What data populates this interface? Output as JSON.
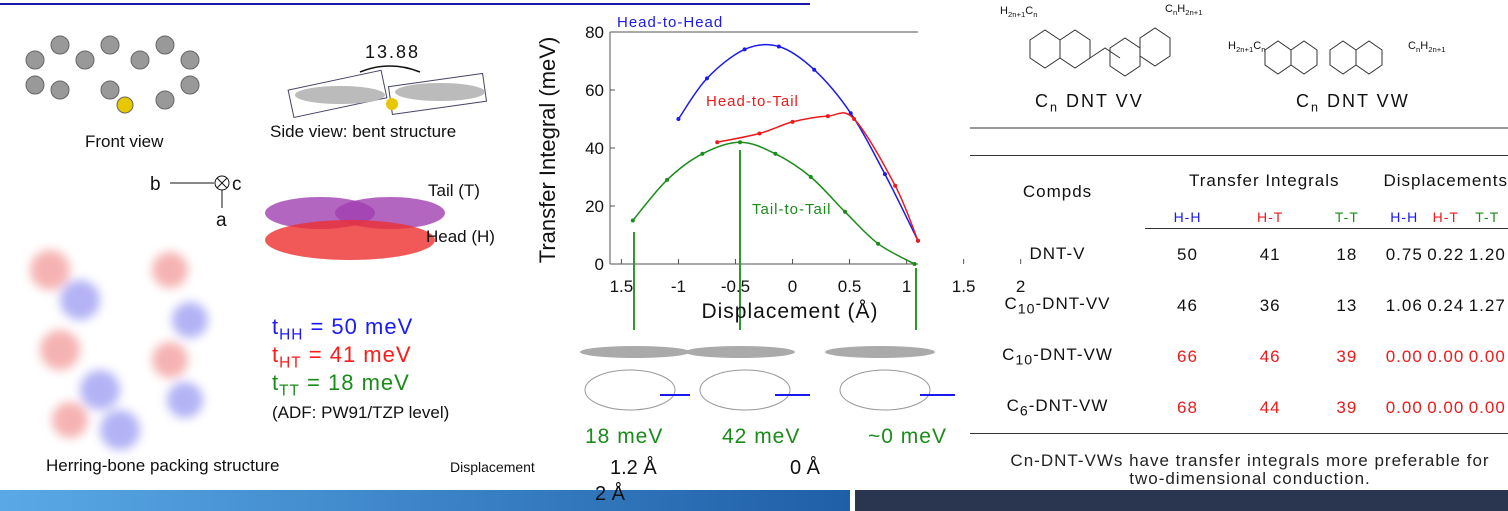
{
  "left": {
    "angle": "13.88",
    "front_view": "Front view",
    "side_view": "Side view: bent structure",
    "axis_b": "b",
    "axis_c": "c",
    "axis_a": "a",
    "tail": "Tail (T)",
    "head": "Head (H)",
    "t_values": [
      {
        "parts": [
          "t",
          "HH",
          " = 50 meV"
        ],
        "color": "#1a1aff"
      },
      {
        "parts": [
          "t",
          "HT",
          " = 41 meV"
        ],
        "color": "#ff1a1a"
      },
      {
        "parts": [
          "t",
          "TT",
          " = 18 meV"
        ],
        "color": "#1a8c1a"
      }
    ],
    "method": "(ADF: PW91/TZP level)",
    "packing": "Herring-bone packing structure"
  },
  "chart_data": {
    "type": "line",
    "y_label": "Transfer Integral (meV)",
    "x_label": "Displacement (Å)",
    "xlim": [
      -1.6,
      1.1
    ],
    "ylim": [
      0,
      80
    ],
    "yticks": [
      0,
      20,
      40,
      60,
      80
    ],
    "xticks": [
      {
        "value": -1.5,
        "label": "1.5"
      },
      -1,
      -0.5,
      0,
      0.5,
      1,
      1.5,
      2
    ],
    "series": [
      {
        "name": "Head-to-Head",
        "color": "#1a1aee",
        "x": [
          -1.0,
          -0.75,
          -0.42,
          -0.12,
          0.19,
          0.51,
          0.81,
          1.1
        ],
        "values": [
          50,
          64,
          74,
          75,
          67,
          52,
          31,
          8
        ]
      },
      {
        "name": "Head-to-Tail",
        "color": "#ee1a1a",
        "x": [
          -0.66,
          -0.29,
          0,
          0.31,
          0.54,
          0.9,
          1.1
        ],
        "values": [
          42,
          45,
          49,
          51,
          50,
          27,
          8
        ]
      },
      {
        "name": "Tail-to-Tail",
        "color": "#1a8c1a",
        "x": [
          -1.4,
          -1.1,
          -0.79,
          -0.46,
          -0.15,
          0.16,
          0.46,
          0.75,
          1.07
        ],
        "values": [
          15,
          29,
          38,
          42,
          38,
          30,
          18,
          7,
          0
        ]
      }
    ]
  },
  "bottom": {
    "e1": "18 meV",
    "e2": "42 meV",
    "e3": "~0 meV",
    "disp_label": "Displacement",
    "d1": "1.2 Å",
    "d2": "0 Å",
    "d3": "2 Å"
  },
  "molecules": [
    {
      "label": [
        "C",
        "n",
        " DNT VV"
      ],
      "left": [
        "H",
        "2n+1",
        "C",
        "n"
      ],
      "right": [
        "C",
        "n",
        "H",
        "2n+1"
      ]
    },
    {
      "label": [
        "C",
        "n",
        " DNT VW"
      ],
      "left": [
        "H",
        "2n+1",
        "C",
        "n"
      ],
      "right": [
        "C",
        "n",
        "H",
        "2n+1"
      ]
    }
  ],
  "table": {
    "headers": [
      "Compds",
      "Transfer Integrals",
      "Displacements"
    ],
    "subheaders": [
      "H-H",
      "H-T",
      "T-T",
      "H-H",
      "H-T",
      "T-T"
    ],
    "rows": [
      {
        "name": [
          "DNT-V"
        ],
        "cells": [
          "50",
          "41",
          "18",
          "0.75",
          "0.22",
          "1.20"
        ]
      },
      {
        "name": [
          "C",
          "10",
          "-DNT-VV"
        ],
        "cells": [
          "46",
          "36",
          "13",
          "1.06",
          "0.24",
          "1.27"
        ]
      },
      {
        "name": [
          "C",
          "10",
          "-DNT-VW"
        ],
        "cells": [
          "66",
          "46",
          "39",
          "0.00",
          "0.00",
          "0.00"
        ],
        "highlight": true
      },
      {
        "name": [
          "C",
          "6",
          "-DNT-VW"
        ],
        "cells": [
          "68",
          "44",
          "39",
          "0.00",
          "0.00",
          "0.00"
        ],
        "highlight": true
      }
    ]
  },
  "conclusion": "Cn-DNT-VWs have transfer integrals more preferable for two-dimensional conduction."
}
